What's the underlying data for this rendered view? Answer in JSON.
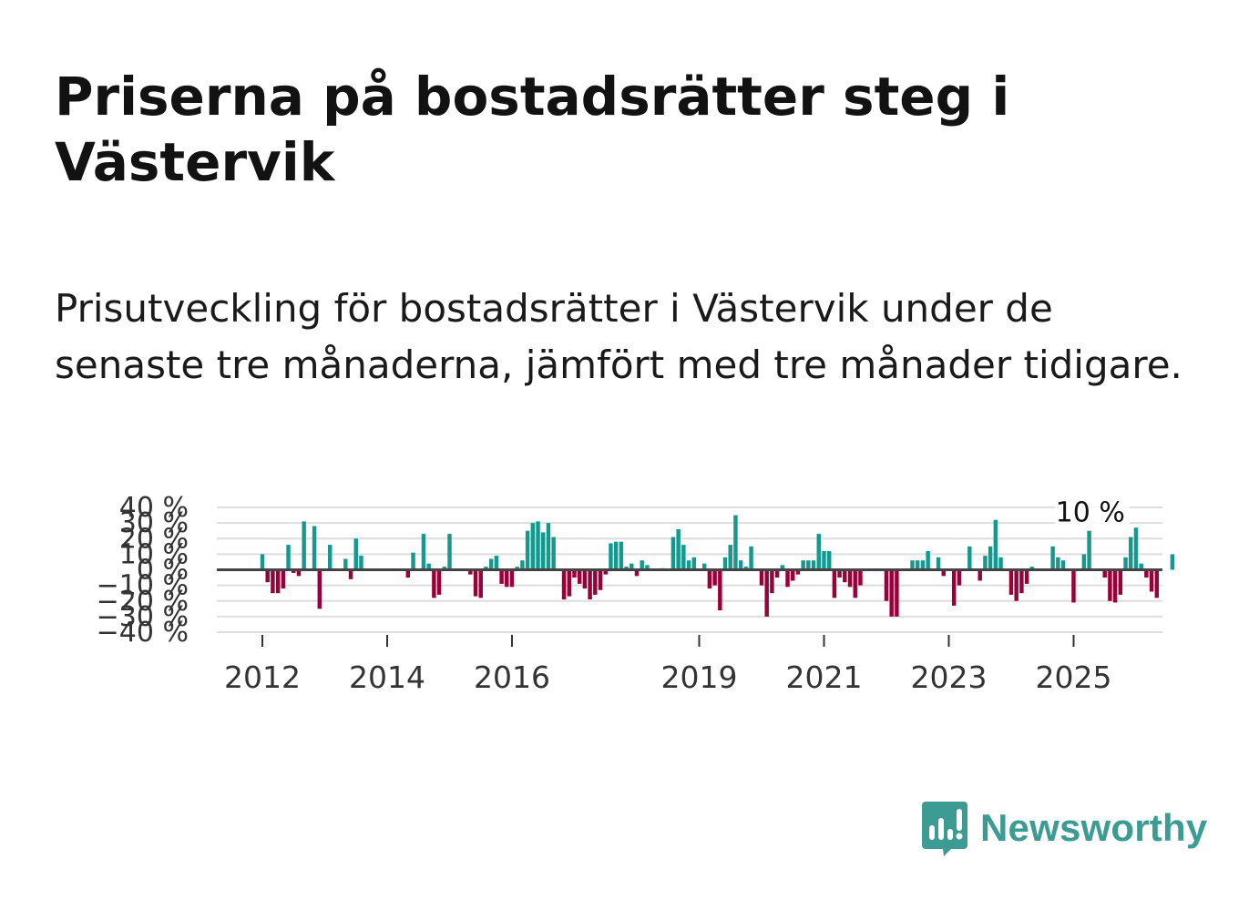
{
  "title": "Priserna på bostadsrätter steg i Västervik",
  "subtitle": "Prisutveckling för bostadsrätter i Västervik under de senaste tre månaderna, jämfört med tre månader tidigare.",
  "brand": {
    "name": "Newsworthy"
  },
  "colors": {
    "positive": "#14998f",
    "negative": "#990039",
    "grid": "#dddddd",
    "zero": "#444444",
    "brand": "#3c9b93"
  },
  "chart_data": {
    "type": "bar",
    "title": "",
    "xlabel": "",
    "ylabel": "",
    "ylim": [
      -40,
      40
    ],
    "x_start": 2012.0,
    "x_step": 0.08333,
    "values": [
      10,
      -8,
      -15,
      -15,
      -12,
      16,
      -2,
      -4,
      31,
      0,
      28,
      -25,
      0,
      16,
      0,
      0,
      7,
      -6,
      20,
      9,
      0,
      0,
      0,
      0,
      0,
      0,
      0,
      0,
      -5,
      11,
      0,
      23,
      4,
      -18,
      -16,
      2,
      23,
      0,
      0,
      0,
      -3,
      -17,
      -18,
      2,
      7,
      9,
      -9,
      -11,
      -11,
      2,
      6,
      25,
      30,
      31,
      24,
      30,
      21,
      0,
      -19,
      -17,
      -5,
      -9,
      -12,
      -19,
      -16,
      -13,
      -3,
      17,
      18,
      18,
      2,
      4,
      -4,
      6,
      3,
      0,
      0,
      1,
      0,
      21,
      26,
      16,
      6,
      8,
      0,
      4,
      -12,
      -10,
      -26,
      8,
      16,
      35,
      6,
      2,
      15,
      0,
      -10,
      -30,
      -15,
      -5,
      3,
      -11,
      -7,
      -3,
      6,
      6,
      6,
      23,
      12,
      12,
      -18,
      -5,
      -8,
      -11,
      -18,
      -10,
      0,
      0,
      0,
      0,
      -20,
      -30,
      -30,
      0,
      0,
      6,
      6,
      6,
      12,
      0,
      8,
      -4,
      0,
      -23,
      -10,
      0,
      15,
      0,
      -7,
      9,
      15,
      32,
      8,
      0,
      -16,
      -20,
      -15,
      -9,
      2,
      0,
      0,
      0,
      15,
      8,
      6,
      0,
      -21,
      0,
      10,
      25,
      0,
      0,
      -5,
      -20,
      -21,
      -16,
      8,
      21,
      27,
      4,
      -5,
      -14,
      -18,
      0,
      0,
      10
    ],
    "y_ticks": [
      {
        "value": 40,
        "label": "40 %"
      },
      {
        "value": 30,
        "label": "30 %"
      },
      {
        "value": 20,
        "label": "20 %"
      },
      {
        "value": 10,
        "label": "10 %"
      },
      {
        "value": 0,
        "label": "0 %"
      },
      {
        "value": -10,
        "label": "−10 %"
      },
      {
        "value": -20,
        "label": "−20 %"
      },
      {
        "value": -30,
        "label": "−30 %"
      },
      {
        "value": -40,
        "label": "−40 %"
      }
    ],
    "x_ticks": [
      {
        "value": 2012,
        "label": "2012"
      },
      {
        "value": 2014,
        "label": "2014"
      },
      {
        "value": 2016,
        "label": "2016"
      },
      {
        "value": 2019,
        "label": "2019"
      },
      {
        "value": 2021,
        "label": "2021"
      },
      {
        "value": 2023,
        "label": "2023"
      },
      {
        "value": 2025,
        "label": "2025"
      }
    ],
    "annotation": {
      "x": 2025.75,
      "value": 10,
      "label": "10 %"
    }
  }
}
